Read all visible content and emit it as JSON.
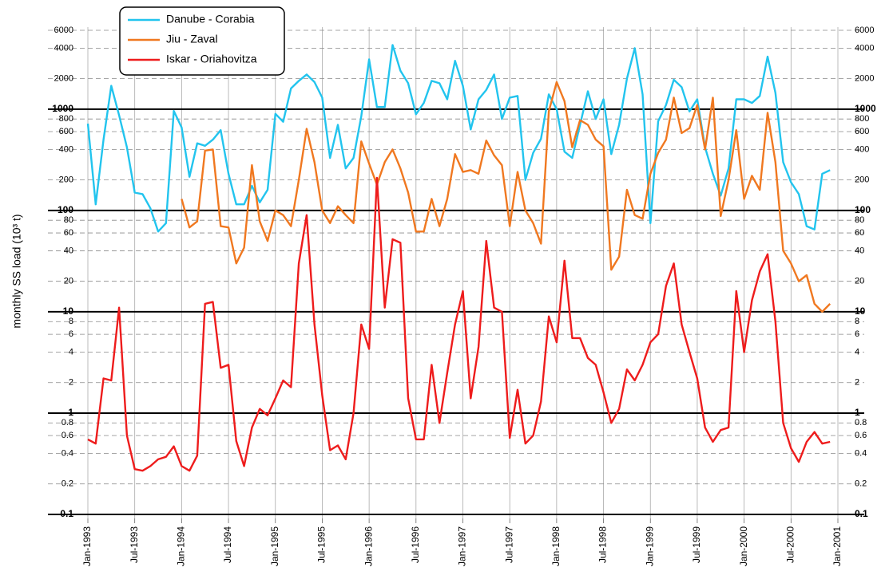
{
  "chart_data": {
    "type": "line",
    "y_label": "monthly SS load (10³ t)",
    "log_scale": true,
    "grid": true,
    "ylim": [
      0.1,
      6000
    ],
    "yticks": [
      0.1,
      0.2,
      0.4,
      0.6,
      0.8,
      1,
      2,
      4,
      6,
      8,
      10,
      20,
      40,
      60,
      80,
      100,
      200,
      400,
      600,
      800,
      1000,
      2000,
      4000,
      6000
    ],
    "categories": [
      "Jan-1993",
      null,
      null,
      null,
      null,
      null,
      "Jul-1993",
      null,
      null,
      null,
      null,
      null,
      "Jan-1994",
      null,
      null,
      null,
      null,
      null,
      "Jul-1994",
      null,
      null,
      null,
      null,
      null,
      "Jan-1995",
      null,
      null,
      null,
      null,
      null,
      "Jul-1995",
      null,
      null,
      null,
      null,
      null,
      "Jan-1996",
      null,
      null,
      null,
      null,
      null,
      "Jul-1996",
      null,
      null,
      null,
      null,
      null,
      "Jan-1997",
      null,
      null,
      null,
      null,
      null,
      "Jul-1997",
      null,
      null,
      null,
      null,
      null,
      "Jan-1998",
      null,
      null,
      null,
      null,
      null,
      "Jul-1998",
      null,
      null,
      null,
      null,
      null,
      "Jan-1999",
      null,
      null,
      null,
      null,
      null,
      "Jul-1999",
      null,
      null,
      null,
      null,
      null,
      "Jan-2000",
      null,
      null,
      null,
      null,
      null,
      "Jul-2000",
      null,
      null,
      null,
      null,
      null,
      "Jan-2001"
    ],
    "series": [
      {
        "name": "Danube - Corabia",
        "color": "#22c4ee",
        "values": [
          720,
          115,
          500,
          1700,
          870,
          420,
          150,
          145,
          105,
          62,
          75,
          960,
          660,
          215,
          460,
          435,
          500,
          620,
          230,
          115,
          115,
          175,
          120,
          160,
          900,
          750,
          1600,
          1900,
          2200,
          1850,
          1300,
          330,
          700,
          260,
          330,
          850,
          3100,
          1050,
          1050,
          4300,
          2400,
          1800,
          890,
          1150,
          1900,
          1800,
          1250,
          3000,
          1700,
          630,
          1250,
          1550,
          2200,
          800,
          1300,
          1350,
          200,
          370,
          510,
          1400,
          1000,
          380,
          330,
          700,
          1500,
          800,
          1250,
          360,
          700,
          2000,
          4000,
          1400,
          75,
          760,
          1100,
          1950,
          1650,
          950,
          1250,
          420,
          230,
          140,
          260,
          1250,
          1250,
          1150,
          1350,
          3300,
          1450,
          300,
          190,
          145,
          70,
          65,
          230,
          250,
          null
        ]
      },
      {
        "name": "Jiu - Zaval",
        "color": "#f07820",
        "values": [
          null,
          null,
          null,
          null,
          null,
          null,
          null,
          null,
          null,
          null,
          null,
          null,
          130,
          68,
          78,
          390,
          400,
          70,
          68,
          30,
          43,
          280,
          78,
          50,
          100,
          90,
          70,
          200,
          640,
          300,
          100,
          75,
          110,
          90,
          75,
          480,
          290,
          180,
          300,
          400,
          260,
          150,
          62,
          62,
          130,
          70,
          130,
          360,
          240,
          250,
          230,
          490,
          350,
          280,
          70,
          240,
          100,
          75,
          47,
          950,
          1850,
          1200,
          420,
          780,
          700,
          500,
          430,
          26,
          35,
          160,
          90,
          83,
          230,
          370,
          500,
          1300,
          580,
          650,
          1100,
          400,
          1300,
          88,
          200,
          620,
          130,
          220,
          160,
          920,
          300,
          40,
          30,
          20,
          23,
          12,
          10,
          12,
          null
        ]
      },
      {
        "name": "Iskar - Oriahovitza",
        "color": "#ee1c1c",
        "values": [
          0.55,
          0.5,
          2.2,
          2.1,
          11,
          0.6,
          0.28,
          0.27,
          0.3,
          0.35,
          0.37,
          0.47,
          0.3,
          0.27,
          0.38,
          12,
          12.5,
          2.8,
          3,
          0.53,
          0.3,
          0.72,
          1.1,
          0.95,
          1.4,
          2.1,
          1.8,
          30,
          90,
          7.5,
          1.5,
          0.43,
          0.48,
          0.35,
          1,
          7.5,
          4.3,
          210,
          11,
          52,
          48,
          1.4,
          0.55,
          0.55,
          3,
          0.8,
          2.5,
          7.5,
          16,
          1.4,
          4.5,
          50,
          11,
          10,
          0.57,
          1.7,
          0.5,
          0.6,
          1.3,
          9,
          5,
          32,
          5.5,
          5.5,
          3.5,
          3,
          1.6,
          0.8,
          1.1,
          2.7,
          2.1,
          3,
          5,
          6,
          18,
          30,
          7.5,
          4,
          2.2,
          0.72,
          0.52,
          0.68,
          0.72,
          16,
          4,
          13,
          25,
          37,
          8,
          0.8,
          0.45,
          0.33,
          0.52,
          0.65,
          0.5,
          0.52,
          null
        ]
      }
    ]
  }
}
